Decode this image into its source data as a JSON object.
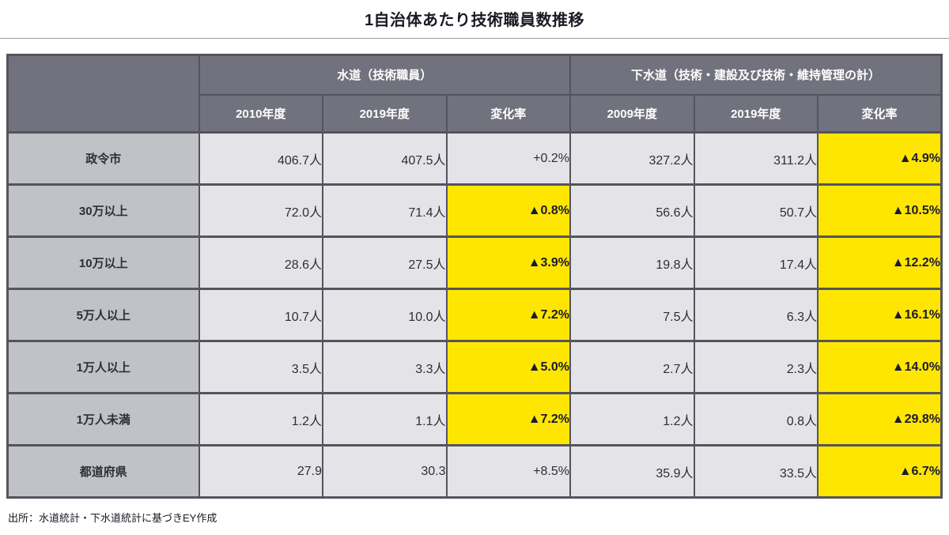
{
  "title": "1自治体あたり技術職員数推移",
  "source": "出所：水道統計・下水道統計に基づきEY作成",
  "colors": {
    "header_bg": "#72727e",
    "row_label_bg": "#c1c1c8",
    "cell_bg": "#e4e4e8",
    "highlight_yellow": "#ffe600",
    "border": "#54545e",
    "text": "#2e2e38"
  },
  "chart_data": {
    "type": "table",
    "title": "1自治体あたり技術職員数推移",
    "group_headers": [
      "水道（技術職員）",
      "下水道（技術・建設及び技術・維持管理の計）"
    ],
    "column_headers": [
      "2010年度",
      "2019年度",
      "変化率",
      "2009年度",
      "2019年度",
      "変化率"
    ],
    "highlight_note": "cells with highlight:true have EY-yellow background",
    "rows": [
      {
        "label": "政令市",
        "cells": [
          {
            "text": "406.7人"
          },
          {
            "text": "407.5人"
          },
          {
            "text": "+0.2%"
          },
          {
            "text": "327.2人"
          },
          {
            "text": "311.2人"
          },
          {
            "text": "▲4.9%",
            "highlight": true
          }
        ]
      },
      {
        "label": "30万以上",
        "cells": [
          {
            "text": "72.0人"
          },
          {
            "text": "71.4人"
          },
          {
            "text": "▲0.8%",
            "highlight": true
          },
          {
            "text": "56.6人"
          },
          {
            "text": "50.7人"
          },
          {
            "text": "▲10.5%",
            "highlight": true
          }
        ]
      },
      {
        "label": "10万以上",
        "cells": [
          {
            "text": "28.6人"
          },
          {
            "text": "27.5人"
          },
          {
            "text": "▲3.9%",
            "highlight": true
          },
          {
            "text": "19.8人"
          },
          {
            "text": "17.4人"
          },
          {
            "text": "▲12.2%",
            "highlight": true
          }
        ]
      },
      {
        "label": "5万人以上",
        "cells": [
          {
            "text": "10.7人"
          },
          {
            "text": "10.0人"
          },
          {
            "text": "▲7.2%",
            "highlight": true
          },
          {
            "text": "7.5人"
          },
          {
            "text": "6.3人"
          },
          {
            "text": "▲16.1%",
            "highlight": true
          }
        ]
      },
      {
        "label": "1万人以上",
        "cells": [
          {
            "text": "3.5人"
          },
          {
            "text": "3.3人"
          },
          {
            "text": "▲5.0%",
            "highlight": true
          },
          {
            "text": "2.7人"
          },
          {
            "text": "2.3人"
          },
          {
            "text": "▲14.0%",
            "highlight": true
          }
        ]
      },
      {
        "label": "1万人未満",
        "cells": [
          {
            "text": "1.2人"
          },
          {
            "text": "1.1人"
          },
          {
            "text": "▲7.2%",
            "highlight": true
          },
          {
            "text": "1.2人"
          },
          {
            "text": "0.8人"
          },
          {
            "text": "▲29.8%",
            "highlight": true
          }
        ]
      },
      {
        "label": "都道府県",
        "cells": [
          {
            "text": "27.9"
          },
          {
            "text": "30.3"
          },
          {
            "text": "+8.5%"
          },
          {
            "text": "35.9人"
          },
          {
            "text": "33.5人"
          },
          {
            "text": "▲6.7%",
            "highlight": true
          }
        ]
      }
    ]
  }
}
